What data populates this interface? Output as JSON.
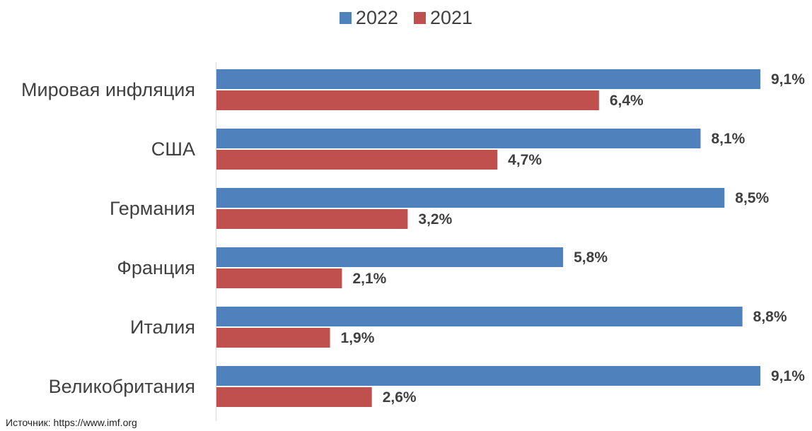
{
  "chart_data": {
    "type": "bar",
    "orientation": "horizontal",
    "categories": [
      "Мировая инфляция",
      "США",
      "Германия",
      "Франция",
      "Италия",
      "Великобритания"
    ],
    "series": [
      {
        "name": "2022",
        "color": "#4F81BD",
        "values": [
          9.1,
          8.1,
          8.5,
          5.8,
          8.8,
          9.1
        ],
        "labels": [
          "9,1%",
          "8,1%",
          "8,5%",
          "5,8%",
          "8,8%",
          "9,1%"
        ]
      },
      {
        "name": "2021",
        "color": "#C0504D",
        "values": [
          6.4,
          4.7,
          3.2,
          2.1,
          1.9,
          2.6
        ],
        "labels": [
          "6,4%",
          "4,7%",
          "3,2%",
          "2,1%",
          "1,9%",
          "2,6%"
        ]
      }
    ],
    "xlim": [
      0,
      9.1
    ],
    "grid": false,
    "legend_position": "top-center"
  },
  "source": "Источник: https://www.imf.org"
}
